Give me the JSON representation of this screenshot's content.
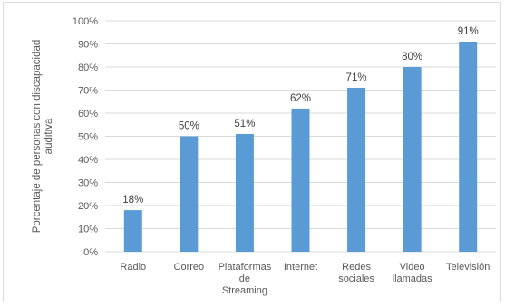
{
  "chart_data": {
    "type": "bar",
    "categories": [
      [
        "Radio"
      ],
      [
        "Correo"
      ],
      [
        "Plataformas",
        "de",
        "Streaming"
      ],
      [
        "Internet"
      ],
      [
        "Redes",
        "sociales"
      ],
      [
        "Video",
        "llamadas"
      ],
      [
        "Televisión"
      ]
    ],
    "values": [
      18,
      50,
      51,
      62,
      71,
      80,
      91
    ],
    "data_labels": [
      "18%",
      "50%",
      "51%",
      "62%",
      "71%",
      "80%",
      "91%"
    ],
    "ylabel": [
      "Porcentaje de personas con discapacidad",
      "auditiva"
    ],
    "ylim": [
      0,
      100
    ],
    "yticks": [
      "0%",
      "10%",
      "20%",
      "30%",
      "40%",
      "50%",
      "60%",
      "70%",
      "80%",
      "90%",
      "100%"
    ],
    "grid": true,
    "legend": "none",
    "colors": {
      "bar": "#5b9bd5",
      "grid": "#d9d9d9",
      "text": "#595959"
    }
  }
}
